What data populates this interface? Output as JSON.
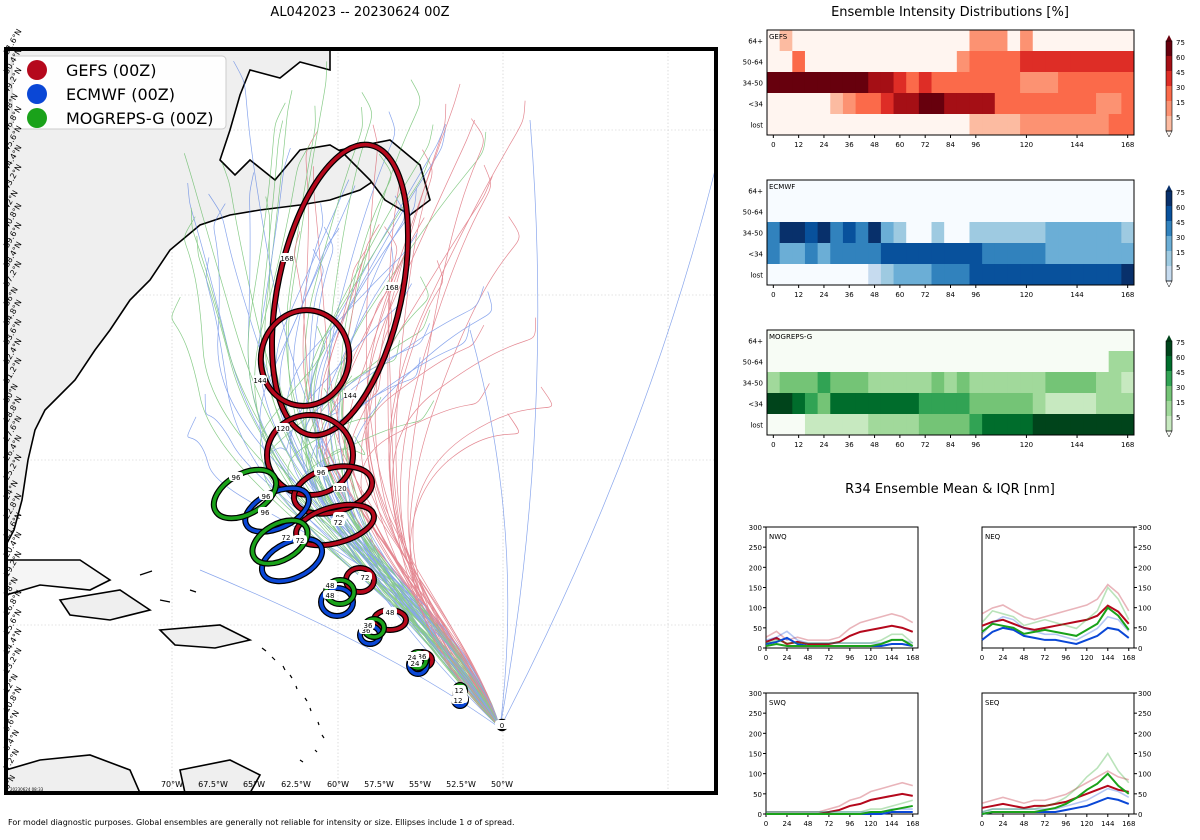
{
  "map": {
    "title": "AL042023 -- 20230624 00Z",
    "legend": [
      {
        "label": "GEFS (00Z)",
        "color": "#b5081c"
      },
      {
        "label": "ECMWF (00Z)",
        "color": "#0a47d6"
      },
      {
        "label": "MOGREPS-G (00Z)",
        "color": "#1aa21a"
      }
    ],
    "lat_labels": [
      "6°N",
      "7.2°N",
      "8.4°N",
      "9.6°N",
      "10.8°N",
      "12°N",
      "13.2°N",
      "14.4°N",
      "15.6°N",
      "16.8°N",
      "18°N",
      "19.2°N",
      "20.4°N",
      "21.6°N",
      "22.8°N",
      "24°N",
      "25.2°N",
      "26.4°N",
      "27.6°N",
      "28.8°N",
      "30°N",
      "31.2°N",
      "32.4°N",
      "33.6°N",
      "34.8°N",
      "36°N",
      "37.2°N",
      "38.4°N",
      "39.6°N",
      "40.8°N",
      "42°N",
      "43.2°N",
      "44.4°N",
      "45.6°N",
      "46.8°N",
      "48°N",
      "49.2°N",
      "50.4°N",
      "51.6°N"
    ],
    "lon_labels": [
      "70°W",
      "67.5°W",
      "65°W",
      "62.5°W",
      "60°W",
      "57.5°W",
      "55°W",
      "52.5°W",
      "50°W"
    ],
    "stamp": "20230624 08:33",
    "footnote": "For model diagnostic purposes. Global ensembles are generally not reliable for intensity or size. Ellipses include 1 σ of spread.",
    "ellipse_labels": {
      "gefs": [
        "168",
        "168",
        "144",
        "144",
        "120",
        "120",
        "96",
        "96",
        "72",
        "72",
        "48",
        "36",
        "24",
        "12",
        "0"
      ],
      "ecmwf": [
        "96",
        "72",
        "48",
        "36",
        "24",
        "12"
      ],
      "mogreps": [
        "96",
        "96",
        "72",
        "48",
        "36",
        "24",
        "12"
      ]
    }
  },
  "intensity": {
    "title": "Ensemble Intensity Distributions [%]",
    "rows": [
      "64+",
      "50-64",
      "34-50",
      "<34",
      "lost"
    ],
    "x_ticks": [
      "0",
      "12",
      "24",
      "36",
      "48",
      "60",
      "72",
      "84",
      "96",
      "120",
      "144",
      "168"
    ],
    "cbar_ticks": [
      "75",
      "60",
      "45",
      "30",
      "15",
      "5"
    ],
    "panels": [
      {
        "name": "GEFS",
        "color": "red"
      },
      {
        "name": "ECMWF",
        "color": "blue"
      },
      {
        "name": "MOGREPS-G",
        "color": "green"
      }
    ]
  },
  "r34": {
    "title": "R34 Ensemble Mean & IQR [nm]",
    "quadrants": [
      "NWQ",
      "NEQ",
      "SWQ",
      "SEQ"
    ],
    "y_ticks": [
      "0",
      "50",
      "100",
      "150",
      "200",
      "250",
      "300"
    ],
    "x_ticks": [
      "0",
      "24",
      "48",
      "72",
      "96",
      "120",
      "144",
      "168"
    ]
  },
  "chart_data": [
    {
      "type": "heatmap",
      "title": "Ensemble Intensity Distributions [%]",
      "panel": "GEFS",
      "x": [
        0,
        6,
        12,
        18,
        24,
        30,
        36,
        42,
        48,
        54,
        60,
        66,
        72,
        78,
        84,
        90,
        96,
        102,
        108,
        114,
        120,
        126,
        132,
        138,
        144,
        150,
        156,
        162,
        168
      ],
      "rows": [
        "64+",
        "50-64",
        "34-50",
        "<34",
        "lost"
      ],
      "values": [
        [
          0,
          5,
          0,
          0,
          0,
          0,
          0,
          0,
          0,
          0,
          0,
          0,
          0,
          0,
          0,
          0,
          15,
          15,
          15,
          0,
          15,
          0,
          0,
          0,
          0,
          0,
          0,
          0,
          0
        ],
        [
          0,
          0,
          30,
          0,
          0,
          0,
          0,
          0,
          0,
          0,
          0,
          0,
          0,
          0,
          0,
          15,
          30,
          30,
          30,
          30,
          50,
          50,
          50,
          50,
          50,
          50,
          50,
          50,
          50
        ],
        [
          90,
          90,
          90,
          90,
          90,
          90,
          90,
          80,
          70,
          60,
          50,
          40,
          50,
          40,
          30,
          30,
          30,
          30,
          30,
          30,
          15,
          15,
          15,
          30,
          30,
          30,
          30,
          30,
          30
        ],
        [
          0,
          0,
          0,
          0,
          0,
          5,
          15,
          30,
          40,
          50,
          60,
          70,
          80,
          80,
          60,
          60,
          60,
          60,
          40,
          40,
          40,
          30,
          30,
          30,
          30,
          30,
          15,
          15,
          30
        ],
        [
          0,
          0,
          0,
          0,
          0,
          0,
          0,
          0,
          0,
          0,
          0,
          0,
          0,
          0,
          0,
          0,
          5,
          5,
          5,
          5,
          15,
          15,
          15,
          15,
          15,
          15,
          15,
          40,
          40
        ]
      ]
    },
    {
      "type": "heatmap",
      "title": "Ensemble Intensity Distributions [%]",
      "panel": "ECMWF",
      "x": [
        0,
        6,
        12,
        18,
        24,
        30,
        36,
        42,
        48,
        54,
        60,
        66,
        72,
        78,
        84,
        90,
        96,
        102,
        108,
        114,
        120,
        126,
        132,
        138,
        144,
        150,
        156,
        162,
        168
      ],
      "rows": [
        "64+",
        "50-64",
        "34-50",
        "<34",
        "lost"
      ],
      "values": [
        [
          0,
          0,
          0,
          0,
          0,
          0,
          0,
          0,
          0,
          0,
          0,
          0,
          0,
          0,
          0,
          0,
          0,
          0,
          0,
          0,
          0,
          0,
          0,
          0,
          0,
          0,
          0,
          0,
          0
        ],
        [
          0,
          0,
          0,
          0,
          0,
          0,
          0,
          0,
          0,
          0,
          0,
          0,
          0,
          0,
          0,
          0,
          0,
          0,
          0,
          0,
          0,
          0,
          0,
          0,
          0,
          0,
          0,
          0,
          0
        ],
        [
          45,
          90,
          90,
          60,
          75,
          45,
          60,
          45,
          75,
          30,
          15,
          0,
          0,
          15,
          0,
          0,
          15,
          15,
          15,
          15,
          15,
          15,
          30,
          30,
          30,
          30,
          30,
          30,
          15
        ],
        [
          45,
          30,
          30,
          45,
          30,
          45,
          45,
          45,
          45,
          60,
          60,
          60,
          60,
          60,
          60,
          60,
          60,
          45,
          45,
          45,
          45,
          45,
          30,
          30,
          30,
          30,
          30,
          30,
          30
        ],
        [
          0,
          0,
          0,
          0,
          0,
          0,
          0,
          0,
          5,
          15,
          30,
          30,
          30,
          45,
          45,
          45,
          60,
          60,
          60,
          60,
          60,
          60,
          60,
          60,
          60,
          60,
          60,
          60,
          75
        ]
      ]
    },
    {
      "type": "heatmap",
      "title": "Ensemble Intensity Distributions [%]",
      "panel": "MOGREPS-G",
      "x": [
        0,
        6,
        12,
        18,
        24,
        30,
        36,
        42,
        48,
        54,
        60,
        66,
        72,
        78,
        84,
        90,
        96,
        102,
        108,
        114,
        120,
        126,
        132,
        138,
        144,
        150,
        156,
        162,
        168
      ],
      "rows": [
        "64+",
        "50-64",
        "34-50",
        "<34",
        "lost"
      ],
      "values": [
        [
          0,
          0,
          0,
          0,
          0,
          0,
          0,
          0,
          0,
          0,
          0,
          0,
          0,
          0,
          0,
          0,
          0,
          0,
          0,
          0,
          0,
          0,
          0,
          0,
          0,
          0,
          0,
          0,
          0
        ],
        [
          0,
          0,
          0,
          0,
          0,
          0,
          0,
          0,
          0,
          0,
          0,
          0,
          0,
          0,
          0,
          0,
          0,
          0,
          0,
          0,
          0,
          0,
          0,
          0,
          0,
          0,
          0,
          15,
          15
        ],
        [
          15,
          30,
          30,
          30,
          45,
          30,
          30,
          30,
          15,
          15,
          15,
          15,
          15,
          30,
          15,
          30,
          15,
          15,
          15,
          15,
          15,
          15,
          30,
          30,
          30,
          30,
          15,
          15,
          5
        ],
        [
          90,
          90,
          60,
          45,
          30,
          60,
          60,
          60,
          60,
          60,
          60,
          60,
          45,
          45,
          45,
          45,
          30,
          30,
          30,
          30,
          30,
          15,
          5,
          5,
          5,
          5,
          15,
          15,
          15
        ],
        [
          0,
          0,
          0,
          5,
          5,
          5,
          5,
          5,
          15,
          15,
          15,
          15,
          30,
          30,
          30,
          30,
          45,
          60,
          60,
          60,
          60,
          90,
          90,
          90,
          90,
          90,
          90,
          90,
          90
        ]
      ]
    },
    {
      "type": "line",
      "title": "R34 Ensemble Mean & IQR [nm]",
      "panel": "NWQ",
      "x": [
        0,
        12,
        24,
        36,
        48,
        60,
        72,
        84,
        96,
        108,
        120,
        132,
        144,
        156,
        168
      ],
      "ylim": [
        0,
        300
      ],
      "series": [
        {
          "color": "#b5081c",
          "values": [
            15,
            25,
            10,
            15,
            10,
            10,
            10,
            15,
            30,
            40,
            45,
            50,
            55,
            50,
            40
          ]
        },
        {
          "color": "#0a47d6",
          "values": [
            10,
            15,
            25,
            10,
            5,
            5,
            5,
            5,
            5,
            5,
            5,
            5,
            10,
            10,
            5
          ]
        },
        {
          "color": "#1aa21a",
          "values": [
            5,
            10,
            5,
            5,
            5,
            5,
            5,
            5,
            5,
            5,
            5,
            10,
            20,
            20,
            5
          ]
        }
      ]
    },
    {
      "type": "line",
      "title": "R34 Ensemble Mean & IQR [nm]",
      "panel": "NEQ",
      "x": [
        0,
        12,
        24,
        36,
        48,
        60,
        72,
        84,
        96,
        108,
        120,
        132,
        144,
        156,
        168
      ],
      "ylim": [
        0,
        300
      ],
      "series": [
        {
          "color": "#b5081c",
          "values": [
            55,
            65,
            70,
            60,
            50,
            45,
            50,
            55,
            60,
            65,
            70,
            80,
            105,
            90,
            60
          ]
        },
        {
          "color": "#0a47d6",
          "values": [
            20,
            40,
            50,
            45,
            30,
            25,
            20,
            20,
            15,
            10,
            20,
            30,
            50,
            45,
            25
          ]
        },
        {
          "color": "#1aa21a",
          "values": [
            40,
            60,
            55,
            50,
            35,
            40,
            45,
            40,
            35,
            30,
            45,
            60,
            100,
            80,
            45
          ]
        }
      ]
    },
    {
      "type": "line",
      "title": "R34 Ensemble Mean & IQR [nm]",
      "panel": "SWQ",
      "x": [
        0,
        12,
        24,
        36,
        48,
        60,
        72,
        84,
        96,
        108,
        120,
        132,
        144,
        156,
        168
      ],
      "ylim": [
        0,
        300
      ],
      "series": [
        {
          "color": "#b5081c",
          "values": [
            0,
            0,
            0,
            0,
            0,
            0,
            5,
            10,
            20,
            25,
            35,
            40,
            45,
            50,
            45
          ]
        },
        {
          "color": "#0a47d6",
          "values": [
            0,
            0,
            0,
            0,
            0,
            0,
            0,
            0,
            0,
            0,
            0,
            0,
            5,
            5,
            5
          ]
        },
        {
          "color": "#1aa21a",
          "values": [
            0,
            0,
            0,
            0,
            0,
            0,
            0,
            0,
            0,
            0,
            5,
            5,
            10,
            15,
            20
          ]
        }
      ]
    },
    {
      "type": "line",
      "title": "R34 Ensemble Mean & IQR [nm]",
      "panel": "SEQ",
      "x": [
        0,
        12,
        24,
        36,
        48,
        60,
        72,
        84,
        96,
        108,
        120,
        132,
        144,
        156,
        168
      ],
      "ylim": [
        0,
        300
      ],
      "series": [
        {
          "color": "#b5081c",
          "values": [
            15,
            20,
            25,
            20,
            15,
            20,
            20,
            25,
            30,
            40,
            50,
            60,
            70,
            60,
            55
          ]
        },
        {
          "color": "#0a47d6",
          "values": [
            0,
            5,
            5,
            5,
            5,
            5,
            5,
            5,
            10,
            15,
            20,
            30,
            40,
            35,
            25
          ]
        },
        {
          "color": "#1aa21a",
          "values": [
            0,
            5,
            5,
            5,
            5,
            5,
            10,
            15,
            25,
            40,
            60,
            75,
            100,
            70,
            50
          ]
        }
      ]
    }
  ]
}
